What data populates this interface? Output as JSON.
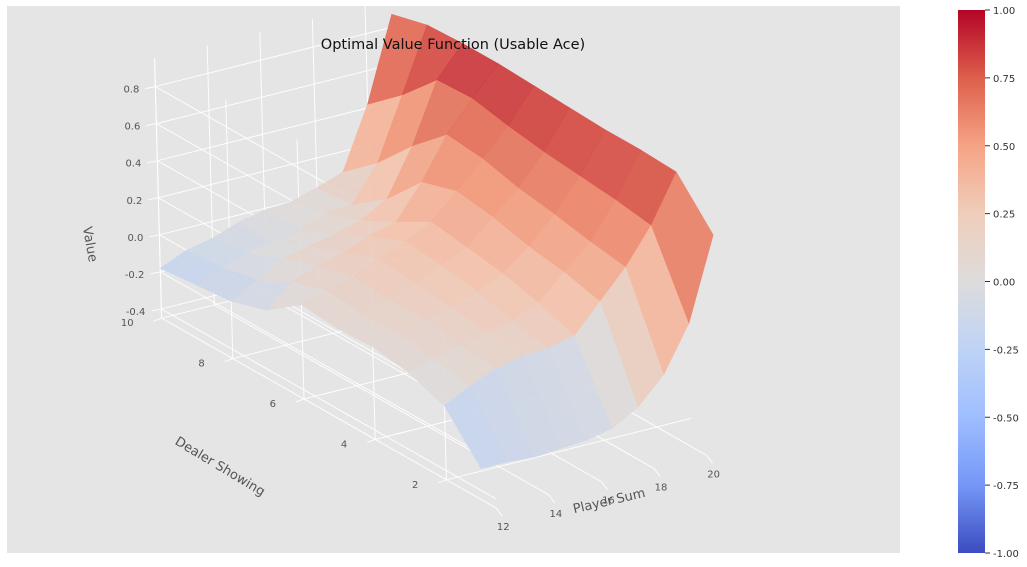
{
  "chart_data": {
    "type": "surface",
    "title": "Optimal Value Function (Usable Ace)",
    "xlabel": "Player Sum",
    "ylabel": "Dealer Showing",
    "zlabel": "Value",
    "x_ticks": [
      "12",
      "14",
      "16",
      "18",
      "20"
    ],
    "y_ticks": [
      "2",
      "4",
      "6",
      "8",
      "10"
    ],
    "z_ticks": [
      "-0.4",
      "-0.2",
      "0.0",
      "0.2",
      "0.4",
      "0.6",
      "0.8"
    ],
    "x": [
      12,
      13,
      14,
      15,
      16,
      17,
      18,
      19,
      20,
      21
    ],
    "y": [
      1,
      2,
      3,
      4,
      5,
      6,
      7,
      8,
      9,
      10
    ],
    "zlim": [
      -0.45,
      0.95
    ],
    "colormap": "coolwarm",
    "colorbar": {
      "ticks": [
        "1.00",
        "0.75",
        "0.50",
        "0.25",
        "0.00",
        "-0.25",
        "-0.50",
        "-0.75",
        "-1.00"
      ],
      "range": [
        -1,
        1
      ]
    },
    "values": [
      [
        -0.28,
        -0.28,
        -0.29,
        -0.28,
        -0.27,
        -0.24,
        -0.16,
        -0.02,
        0.22,
        0.66
      ],
      [
        -0.05,
        0.02,
        0.08,
        0.11,
        0.12,
        0.15,
        0.3,
        0.45,
        0.64,
        0.89
      ],
      [
        0.02,
        0.06,
        0.1,
        0.13,
        0.16,
        0.22,
        0.35,
        0.48,
        0.67,
        0.9
      ],
      [
        0.05,
        0.08,
        0.13,
        0.16,
        0.21,
        0.27,
        0.38,
        0.52,
        0.69,
        0.9
      ],
      [
        0.04,
        0.08,
        0.13,
        0.18,
        0.24,
        0.3,
        0.43,
        0.55,
        0.71,
        0.91
      ],
      [
        0.06,
        0.1,
        0.14,
        0.2,
        0.26,
        0.33,
        0.46,
        0.6,
        0.74,
        0.92
      ],
      [
        -0.08,
        0.04,
        0.09,
        0.13,
        0.18,
        0.22,
        0.4,
        0.62,
        0.78,
        0.93
      ],
      [
        -0.14,
        -0.06,
        0.02,
        0.05,
        0.08,
        0.12,
        0.2,
        0.45,
        0.77,
        0.93
      ],
      [
        -0.16,
        -0.1,
        -0.06,
        -0.04,
        0.0,
        0.05,
        0.06,
        0.25,
        0.58,
        0.92
      ],
      [
        -0.18,
        -0.12,
        -0.09,
        -0.04,
        -0.01,
        0.0,
        0.04,
        0.09,
        0.42,
        0.87
      ]
    ]
  }
}
